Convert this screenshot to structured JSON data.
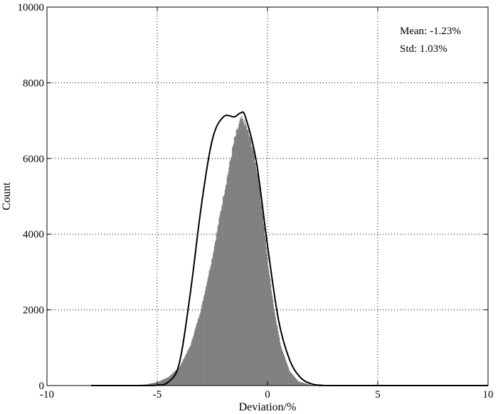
{
  "chart_data": {
    "type": "bar",
    "title": "",
    "xlabel": "Deviation/%",
    "ylabel": "Count",
    "xlim": [
      -10,
      10
    ],
    "ylim": [
      0,
      10000
    ],
    "x_ticks": [
      -10,
      -5,
      0,
      5,
      10
    ],
    "y_ticks": [
      0,
      2000,
      4000,
      6000,
      8000,
      10000
    ],
    "grid": true,
    "grid_style": "dotted",
    "annotations": {
      "mean": "Mean: -1.23%",
      "std": "Std: 1.03%"
    },
    "bar_color": "#808080",
    "curve_color": "#000000",
    "histogram": {
      "x": [
        -6.5,
        -6.0,
        -5.5,
        -5.0,
        -4.5,
        -4.0,
        -3.5,
        -3.0,
        -2.5,
        -2.0,
        -1.5,
        -1.2,
        -1.0,
        -0.7,
        -0.4,
        -0.2,
        0.0,
        0.3,
        0.6,
        1.0,
        1.4,
        2.0,
        3.0
      ],
      "counts": [
        0,
        10,
        30,
        90,
        220,
        480,
        1050,
        2050,
        3400,
        5000,
        6500,
        7050,
        6900,
        6350,
        5400,
        4400,
        3300,
        2000,
        1050,
        380,
        110,
        10,
        0
      ]
    },
    "series": [
      {
        "name": "",
        "type": "line",
        "x": [
          -8.0,
          -5.5,
          -5.0,
          -4.5,
          -4.0,
          -3.5,
          -3.0,
          -2.5,
          -2.0,
          -1.5,
          -1.23,
          -1.0,
          -0.5,
          0.0,
          0.5,
          1.0,
          1.5,
          2.0,
          2.5,
          3.0,
          10.0
        ],
        "y": [
          0,
          1,
          9,
          91,
          588,
          2440,
          4750,
          6500,
          7100,
          7100,
          7200,
          7100,
          5900,
          3700,
          1730,
          684,
          210,
          44,
          6,
          1,
          0
        ]
      }
    ]
  }
}
